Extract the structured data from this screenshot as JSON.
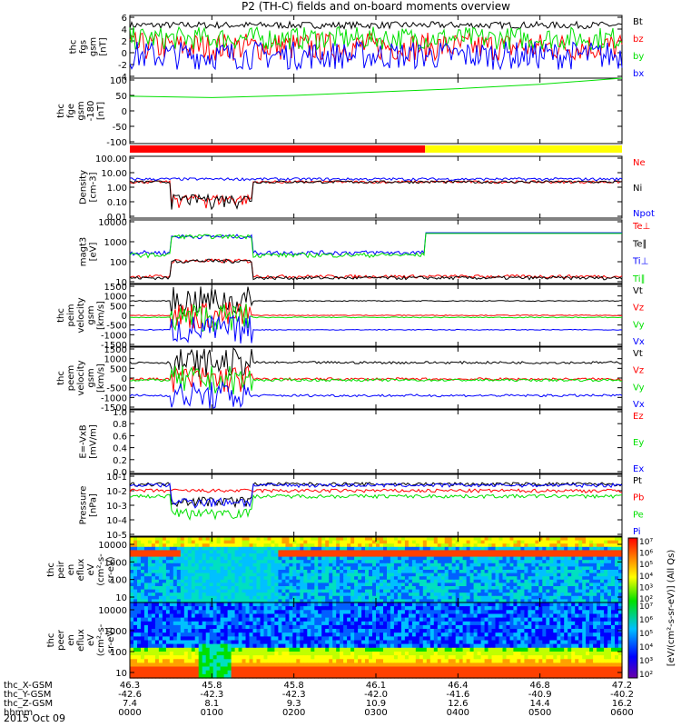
{
  "title": "P2 (TH-C) fields and on-board moments overview",
  "date_label": "2015 Oct 09",
  "colors": {
    "black": "#000000",
    "red": "#ff0000",
    "green": "#00e000",
    "blue": "#0000ff",
    "yellow": "#ffff00",
    "bar_red": "#ff0000"
  },
  "chart_data": [
    {
      "type": "line",
      "panel": "fgs_gsm",
      "ylabel": [
        "thc",
        "fgs",
        "gsm",
        "[nT]"
      ],
      "yticks": [
        "6",
        "4",
        "2",
        "0",
        "-2",
        "-4"
      ],
      "ylim": [
        -5,
        6
      ],
      "series": [
        {
          "name": "Bt",
          "color": "black",
          "level": 4.3,
          "noise": 0.6
        },
        {
          "name": "bz",
          "color": "red",
          "level": 0.5,
          "noise": 2.5
        },
        {
          "name": "by",
          "color": "green",
          "level": 2.0,
          "noise": 2.0
        },
        {
          "name": "bx",
          "color": "blue",
          "level": -1.0,
          "noise": 2.5
        }
      ]
    },
    {
      "type": "line",
      "panel": "fge_gsm",
      "ylabel": [
        "thc",
        "fge",
        "gsm",
        "-180",
        "[nT]"
      ],
      "yticks": [
        "100",
        "50",
        "0",
        "-50",
        "-100"
      ],
      "ylim": [
        -125,
        110
      ],
      "series": [
        {
          "name": "",
          "color": "green",
          "x": [
            0,
            100,
            200,
            300,
            400,
            500,
            600
          ],
          "values": [
            45,
            40,
            48,
            60,
            72,
            88,
            110
          ]
        }
      ]
    },
    {
      "type": "bar",
      "panel": "mode_bar",
      "segments": [
        {
          "color": "bar_red",
          "from_min": 0,
          "to_min": 360
        },
        {
          "color": "yellow",
          "from_min": 360,
          "to_min": 600
        }
      ]
    },
    {
      "type": "line",
      "panel": "density",
      "ylabel": [
        "Density",
        "[cm-3]"
      ],
      "yticks": [
        "100.00",
        "10.00",
        "1.00",
        "0.10",
        "0.01"
      ],
      "log": true,
      "ylim": [
        0.005,
        300
      ],
      "series": [
        {
          "name": "Ne",
          "color": "red",
          "level": 3.0
        },
        {
          "name": "Ni",
          "color": "black",
          "level": 3.0
        },
        {
          "name": "Npot",
          "color": "blue",
          "level": 5.0
        }
      ]
    },
    {
      "type": "line",
      "panel": "temperature",
      "ylabel": [
        "magt3",
        "[eV]"
      ],
      "yticks": [
        "10000",
        "1000",
        "100",
        "10"
      ],
      "log": true,
      "ylim": [
        5,
        12000
      ],
      "series": [
        {
          "name": "Te⊥",
          "color": "red",
          "level": 12
        },
        {
          "name": "Te∥",
          "color": "black",
          "level": 10
        },
        {
          "name": "Ti⊥",
          "color": "blue",
          "level": 200
        },
        {
          "name": "Ti∥",
          "color": "green",
          "level": 150
        }
      ]
    },
    {
      "type": "line",
      "panel": "peim_velocity",
      "ylabel": [
        "thc",
        "peim",
        "velocity",
        "gsm",
        "[km/s]"
      ],
      "yticks": [
        "1500",
        "1000",
        "500",
        "0",
        "-500",
        "-1000",
        "-1500"
      ],
      "ylim": [
        -1500,
        1500
      ],
      "series": [
        {
          "name": "Vt",
          "color": "black",
          "level": 700
        },
        {
          "name": "Vz",
          "color": "red",
          "level": 0
        },
        {
          "name": "Vy",
          "color": "green",
          "level": -100
        },
        {
          "name": "Vx",
          "color": "blue",
          "level": -700
        }
      ]
    },
    {
      "type": "line",
      "panel": "peem_velocity",
      "ylabel": [
        "thc",
        "peem",
        "velocity",
        "gsm",
        "[km/s]"
      ],
      "yticks": [
        "1500",
        "1000",
        "500",
        "0",
        "-500",
        "-1000",
        "-1500"
      ],
      "ylim": [
        -1500,
        1500
      ],
      "series": [
        {
          "name": "Vt",
          "color": "black",
          "level": 750
        },
        {
          "name": "Vz",
          "color": "red",
          "level": -50
        },
        {
          "name": "Vy",
          "color": "green",
          "level": -100
        },
        {
          "name": "Vx",
          "color": "blue",
          "level": -850
        }
      ]
    },
    {
      "type": "line",
      "panel": "efield",
      "ylabel": [
        "E=-VxB",
        "[mV/m]"
      ],
      "yticks": [
        "1.0",
        "0.8",
        "0.6",
        "0.4",
        "0.2",
        "0.0"
      ],
      "ylim": [
        0,
        1
      ],
      "series": [
        {
          "name": "Ez",
          "color": "red"
        },
        {
          "name": "Ey",
          "color": "green"
        },
        {
          "name": "Ex",
          "color": "blue"
        }
      ]
    },
    {
      "type": "line",
      "panel": "pressure",
      "ylabel": [
        "Pressure",
        "[nPa]"
      ],
      "yticks": [
        "10-1",
        "10-2",
        "10-3",
        "10-4",
        "10-5"
      ],
      "log": true,
      "ylim": [
        5e-06,
        0.15
      ],
      "series": [
        {
          "name": "Pt",
          "color": "black",
          "level": 0.03
        },
        {
          "name": "Pb",
          "color": "red",
          "level": 0.01
        },
        {
          "name": "Pe",
          "color": "green",
          "level": 0.004
        },
        {
          "name": "Pi",
          "color": "blue",
          "level": 0.025
        }
      ]
    },
    {
      "type": "heatmap",
      "panel": "peir_spectrogram",
      "ylabel": [
        "thc",
        "peir",
        "en",
        "eflux",
        "eV",
        "(cm²-s-",
        "sr-eV)"
      ],
      "yticks": [
        "10000",
        "1000",
        "100",
        "10"
      ]
    },
    {
      "type": "heatmap",
      "panel": "peer_spectrogram",
      "ylabel": [
        "thc",
        "peer",
        "en",
        "eflux",
        "eV",
        "(cm²-s-",
        "sr-eV)"
      ],
      "yticks": [
        "10000",
        "1000",
        "100",
        "10"
      ]
    },
    {
      "type": "table",
      "panel": "colorbar",
      "ticks": [
        "10⁷",
        "10⁶",
        "10⁵",
        "10⁴",
        "10³",
        "10²"
      ],
      "label": "[eV/(cm²-s-sr-eV)] (All Qs)"
    }
  ],
  "x_axis": {
    "row_labels": [
      "thc_X-GSM",
      "thc_Y-GSM",
      "thc_Z-GSM",
      "hhmm"
    ],
    "columns": [
      [
        "46.3",
        "-42.6",
        "7.4",
        "0000"
      ],
      [
        "45.8",
        "-42.3",
        "8.1",
        "0100"
      ],
      [
        "45.8",
        "-42.3",
        "9.3",
        "0200"
      ],
      [
        "46.1",
        "-42.0",
        "10.9",
        "0300"
      ],
      [
        "46.4",
        "-41.6",
        "12.6",
        "0400"
      ],
      [
        "46.8",
        "-40.9",
        "14.4",
        "0500"
      ],
      [
        "47.2",
        "-40.2",
        "16.2",
        "0600"
      ]
    ]
  }
}
